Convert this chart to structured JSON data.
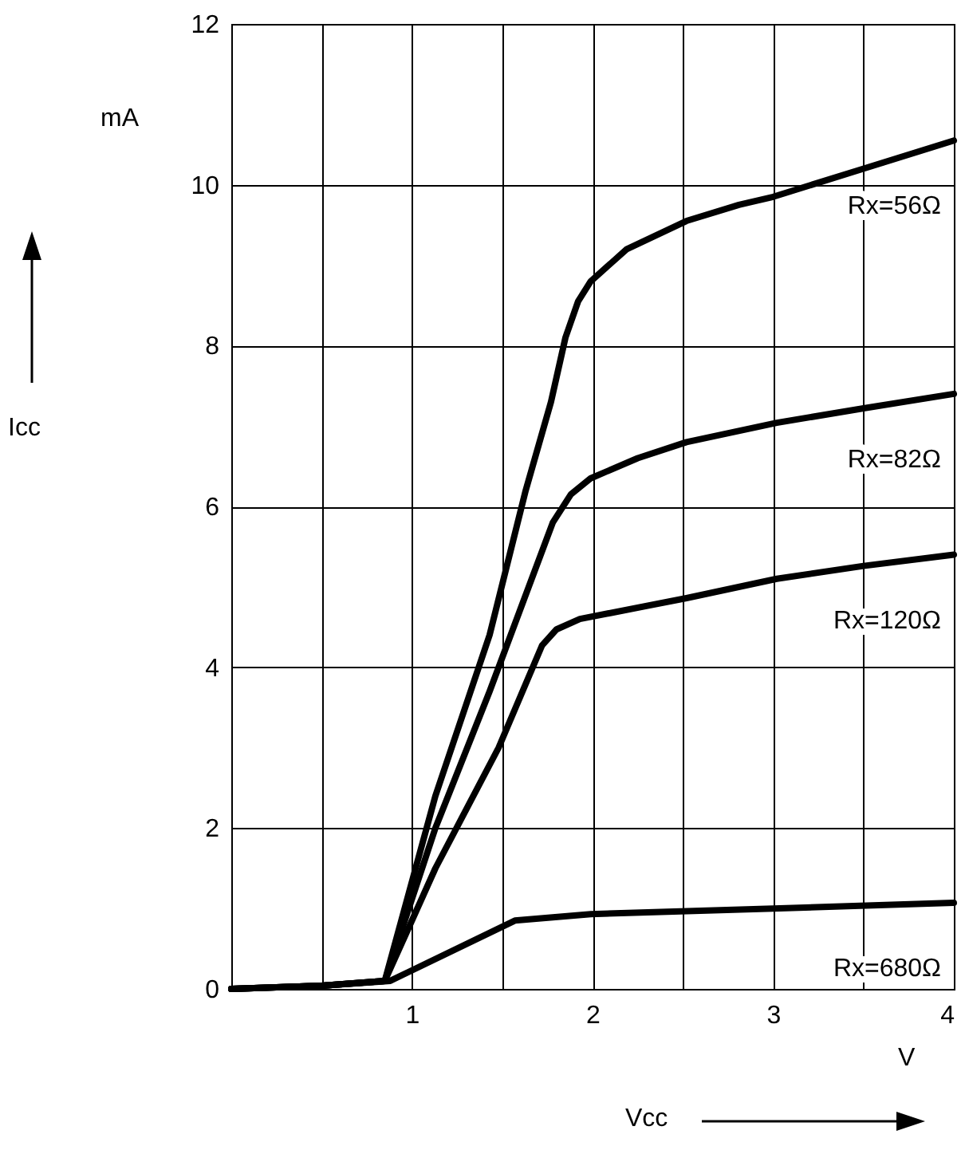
{
  "chart_data": {
    "type": "line",
    "xlabel": "Vcc",
    "annotations": [
      "mA",
      "V",
      "Icc"
    ],
    "xlim": [
      0,
      4
    ],
    "ylim": [
      0,
      12
    ],
    "xticks": [
      {
        "value": 0,
        "label": null
      },
      {
        "value": 0.5,
        "label": null
      },
      1,
      {
        "value": 1.5,
        "label": null
      },
      2,
      {
        "value": 2.5,
        "label": null
      },
      3,
      {
        "value": 3.5,
        "label": null
      },
      4
    ],
    "yticks": [
      0,
      2,
      4,
      6,
      8,
      10,
      12
    ],
    "grid": true,
    "marker": "none",
    "line_style": "solid",
    "series": [
      {
        "name": "Rx=56Ω",
        "color": "#000000",
        "x": [
          0,
          0.5,
          0.85,
          1.13,
          1.43,
          1.63,
          1.77,
          1.85,
          1.92,
          1.99,
          2.19,
          2.52,
          2.81,
          3.0,
          3.5,
          4
        ],
        "values": [
          0,
          0.04,
          0.1,
          2.4,
          4.4,
          6.2,
          7.3,
          8.1,
          8.55,
          8.8,
          9.2,
          9.55,
          9.75,
          9.85,
          10.2,
          10.55
        ]
      },
      {
        "name": "Rx=82Ω",
        "color": "#000000",
        "x": [
          0,
          0.5,
          0.85,
          1.13,
          1.43,
          1.78,
          1.88,
          1.99,
          2.25,
          2.52,
          3.02,
          3.5,
          4
        ],
        "values": [
          0,
          0.04,
          0.1,
          2.0,
          3.7,
          5.8,
          6.15,
          6.35,
          6.6,
          6.8,
          7.04,
          7.22,
          7.4
        ]
      },
      {
        "name": "Rx=120Ω",
        "color": "#000000",
        "x": [
          0,
          0.5,
          0.85,
          1.13,
          1.48,
          1.72,
          1.8,
          1.93,
          2.52,
          3.02,
          3.5,
          4
        ],
        "values": [
          0,
          0.04,
          0.1,
          1.5,
          3.0,
          4.27,
          4.47,
          4.6,
          4.86,
          5.1,
          5.26,
          5.4
        ]
      },
      {
        "name": "Rx=680Ω",
        "color": "#000000",
        "x": [
          0,
          0.5,
          0.88,
          1.57,
          1.99,
          3,
          4
        ],
        "values": [
          0,
          0.04,
          0.1,
          0.85,
          0.93,
          1.0,
          1.07
        ]
      }
    ]
  }
}
